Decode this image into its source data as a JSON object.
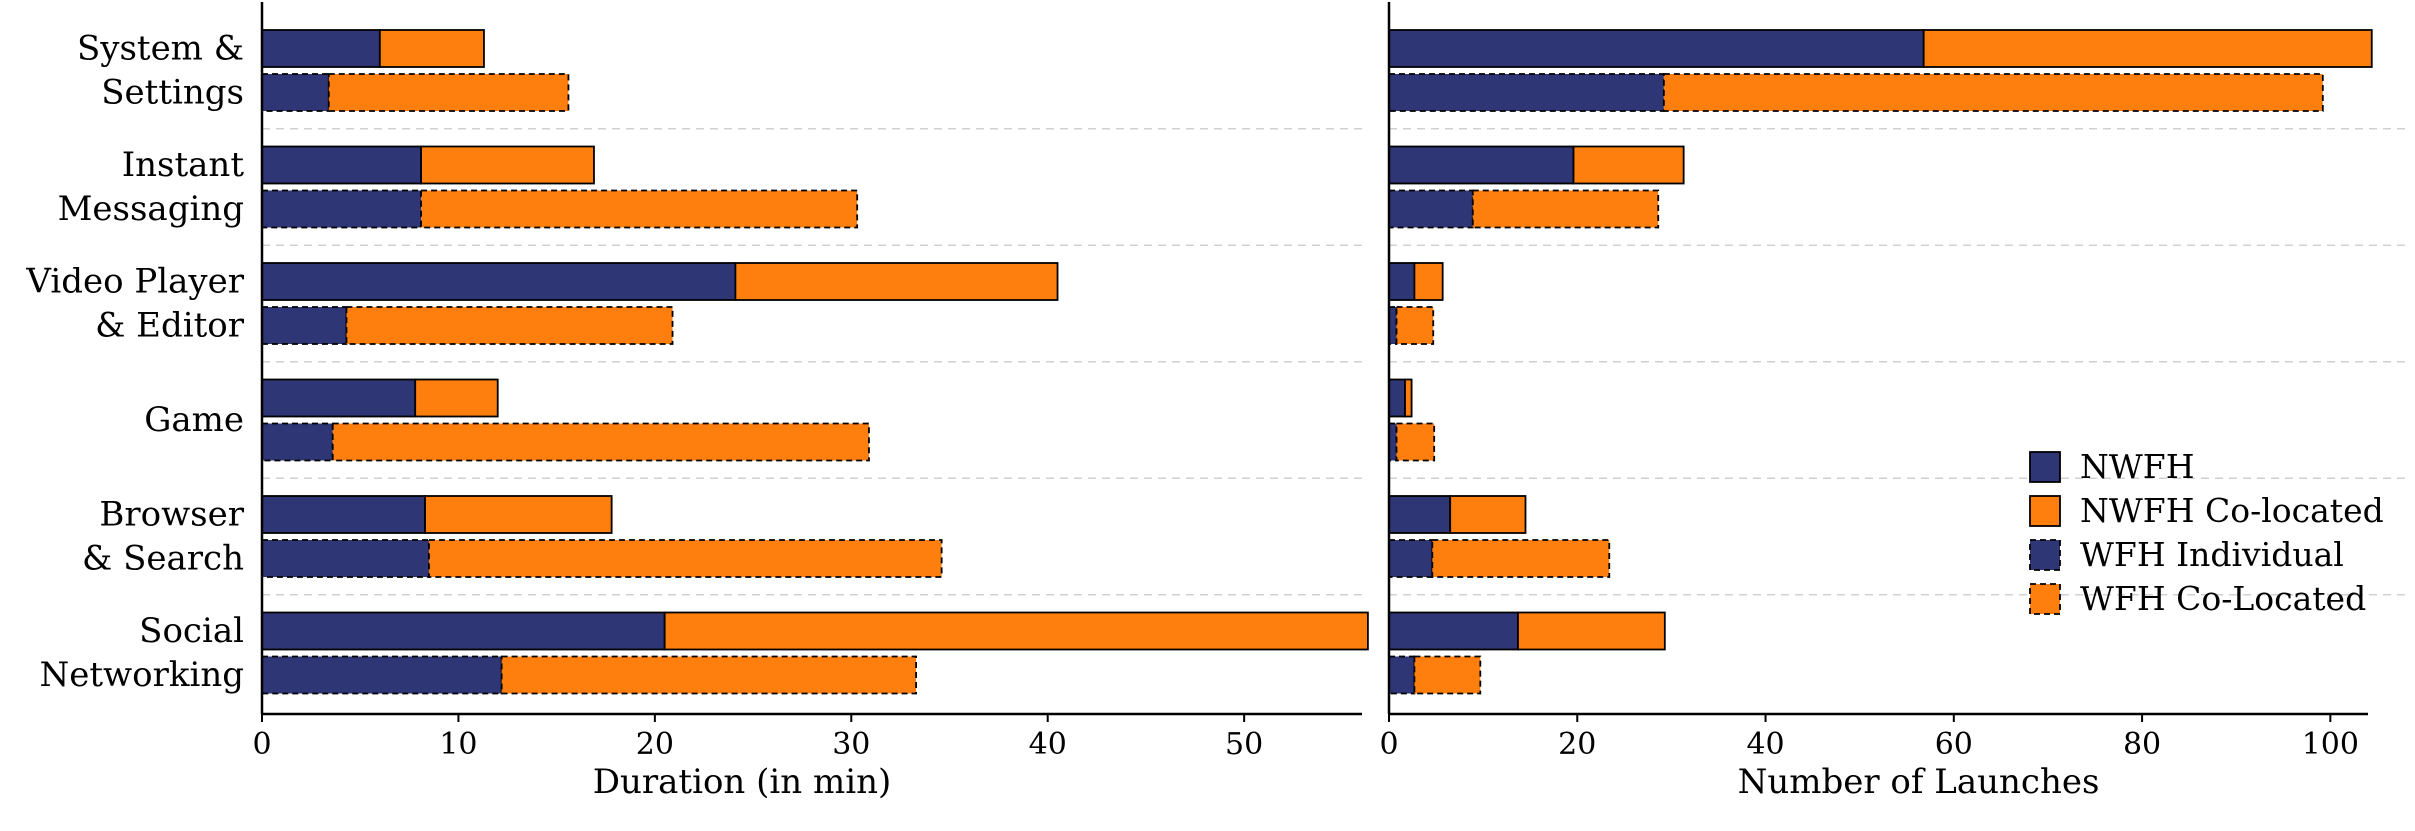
{
  "chart_data": [
    {
      "type": "bar",
      "orientation": "horizontal",
      "stacked": true,
      "categories": [
        [
          "System &",
          "Settings"
        ],
        [
          "Instant",
          "Messaging"
        ],
        [
          "Video Player",
          "& Editor"
        ],
        [
          "Game"
        ],
        [
          "Browser",
          "& Search"
        ],
        [
          "Social",
          "Networking"
        ]
      ],
      "groups": [
        {
          "name": "NWFH",
          "segments": [
            {
              "series": "NWFH",
              "values": [
                6.0,
                8.1,
                24.1,
                7.8,
                8.3,
                20.5
              ]
            },
            {
              "series": "NWFH Co-located",
              "values": [
                5.3,
                8.8,
                16.4,
                4.2,
                9.5,
                35.8
              ]
            }
          ]
        },
        {
          "name": "WFH",
          "segments": [
            {
              "series": "WFH Individual",
              "values": [
                3.4,
                8.1,
                4.3,
                3.6,
                8.5,
                12.2
              ]
            },
            {
              "series": "WFH Co-Located",
              "values": [
                12.2,
                22.2,
                16.6,
                27.3,
                26.1,
                21.1
              ]
            }
          ]
        }
      ],
      "xlabel": "Duration (in min)",
      "xlim": [
        0,
        56
      ],
      "xticks": [
        0,
        10,
        20,
        30,
        40,
        50
      ],
      "grid": false
    },
    {
      "type": "bar",
      "orientation": "horizontal",
      "stacked": true,
      "categories": [
        [
          "System &",
          "Settings"
        ],
        [
          "Instant",
          "Messaging"
        ],
        [
          "Video Player",
          "& Editor"
        ],
        [
          "Game"
        ],
        [
          "Browser",
          "& Search"
        ],
        [
          "Social",
          "Networking"
        ]
      ],
      "groups": [
        {
          "name": "NWFH",
          "segments": [
            {
              "series": "NWFH",
              "values": [
                56.8,
                19.6,
                2.7,
                1.7,
                6.5,
                13.7
              ]
            },
            {
              "series": "NWFH Co-located",
              "values": [
                47.6,
                11.7,
                3.0,
                0.7,
                8.0,
                15.6
              ]
            }
          ]
        },
        {
          "name": "WFH",
          "segments": [
            {
              "series": "WFH Individual",
              "values": [
                29.2,
                8.9,
                0.8,
                0.8,
                4.6,
                2.7
              ]
            },
            {
              "series": "WFH Co-Located",
              "values": [
                70.0,
                19.7,
                3.9,
                4.0,
                18.8,
                7.0
              ]
            }
          ]
        }
      ],
      "xlabel": "Number of Launches",
      "xlim": [
        0,
        104
      ],
      "xticks": [
        0,
        20,
        40,
        60,
        80,
        100
      ],
      "grid": false
    }
  ],
  "legend": {
    "placement": "right",
    "items": [
      {
        "label": "NWFH",
        "color": "#2e3675",
        "dashed": false
      },
      {
        "label": "NWFH Co-located",
        "color": "#ff7f0e",
        "dashed": false
      },
      {
        "label": "WFH Individual",
        "color": "#2e3675",
        "dashed": true
      },
      {
        "label": "WFH Co-Located",
        "color": "#ff7f0e",
        "dashed": true
      }
    ]
  },
  "colors": {
    "primary": "#2e3675",
    "secondary": "#ff7f0e",
    "separator": "#d0d0d0"
  }
}
